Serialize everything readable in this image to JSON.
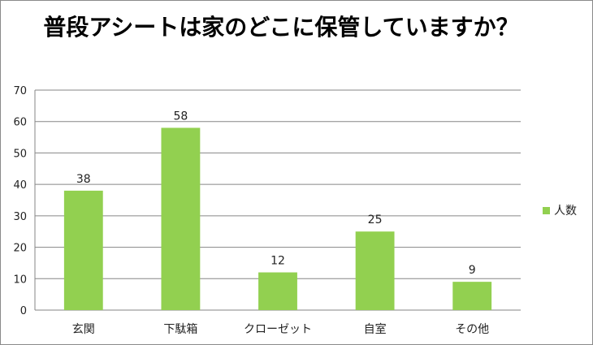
{
  "chart_data": {
    "type": "bar",
    "title": "普段アシートは家のどこに保管していますか？",
    "categories": [
      "玄関",
      "下駄箱",
      "クローゼット",
      "自室",
      "その他"
    ],
    "series": [
      {
        "name": "人数",
        "values": [
          38,
          58,
          12,
          25,
          9
        ]
      }
    ],
    "ylim": [
      0,
      70
    ],
    "yticks": [
      0,
      10,
      20,
      30,
      40,
      50,
      60,
      70
    ],
    "grid": true,
    "legend": "right",
    "bar_color": "#92d050",
    "grid_color": "#868686"
  }
}
